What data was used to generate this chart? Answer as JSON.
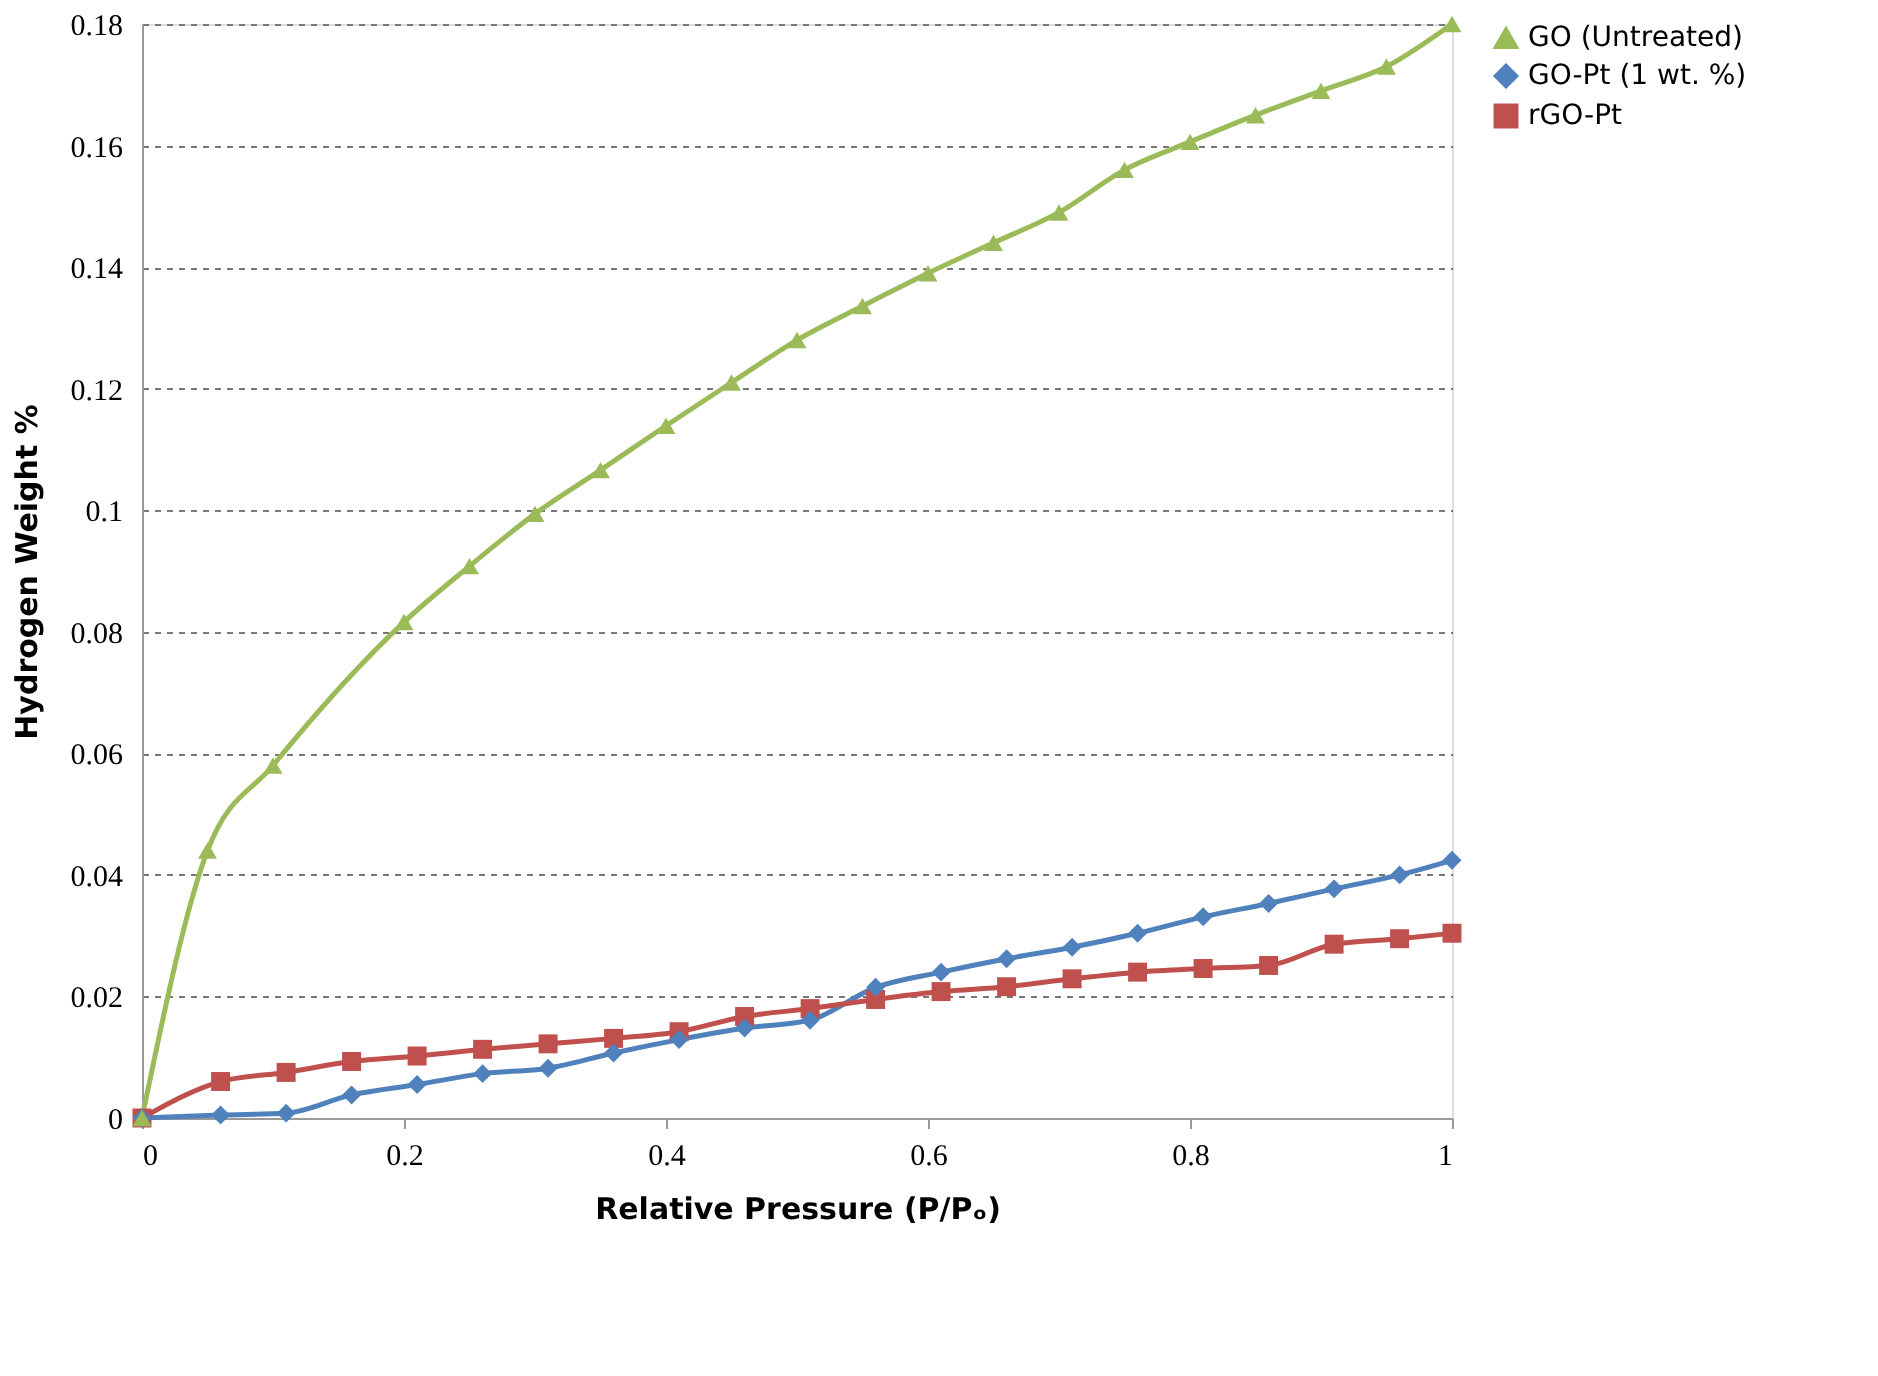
{
  "chart_data": {
    "type": "line",
    "xlabel": "Relative Pressure (P/Pₒ)",
    "ylabel": "Hydrogen Weight %",
    "xlim": [
      0,
      1
    ],
    "xticks": [
      0,
      0.2,
      0.4,
      0.6,
      0.8,
      1
    ],
    "ylim": [
      0,
      0.18
    ],
    "yticks": [
      0,
      0.02,
      0.04,
      0.06,
      0.08,
      0.1,
      0.12,
      0.14,
      0.16,
      0.18
    ],
    "grid": "y",
    "legend": "right",
    "line_style": "solid",
    "series": [
      {
        "name": "GO (Untreated)",
        "color": "#9bbb59",
        "marker": "triangle",
        "x": [
          0,
          0.05,
          0.1,
          0.2,
          0.25,
          0.3,
          0.35,
          0.4,
          0.45,
          0.5,
          0.55,
          0.6,
          0.65,
          0.7,
          0.75,
          0.8,
          0.85,
          0.9,
          0.95,
          1
        ],
        "values": [
          0,
          0.044,
          0.058,
          0.0816,
          0.0908,
          0.0994,
          0.1066,
          0.1139,
          0.121,
          0.128,
          0.1336,
          0.139,
          0.144,
          0.149,
          0.156,
          0.1606,
          0.165,
          0.169,
          0.173,
          0.18
        ]
      },
      {
        "name": "GO-Pt (1 wt. %)",
        "color": "#4f81bd",
        "marker": "diamond",
        "x": [
          0,
          0.06,
          0.11,
          0.16,
          0.21,
          0.26,
          0.31,
          0.36,
          0.41,
          0.46,
          0.51,
          0.56,
          0.61,
          0.66,
          0.71,
          0.76,
          0.81,
          0.86,
          0.91,
          0.96,
          1
        ],
        "values": [
          0,
          0.0005,
          0.0008,
          0.0038,
          0.0055,
          0.0073,
          0.0082,
          0.0107,
          0.0129,
          0.0148,
          0.0161,
          0.0215,
          0.024,
          0.0262,
          0.0281,
          0.0304,
          0.0331,
          0.0353,
          0.0377,
          0.04,
          0.0424
        ]
      },
      {
        "name": "rGO-Pt",
        "color": "#c0504d",
        "marker": "square",
        "x": [
          0,
          0.06,
          0.11,
          0.16,
          0.21,
          0.26,
          0.31,
          0.36,
          0.41,
          0.46,
          0.51,
          0.56,
          0.61,
          0.66,
          0.71,
          0.76,
          0.81,
          0.86,
          0.91,
          0.96,
          1
        ],
        "values": [
          0,
          0.006,
          0.0075,
          0.0093,
          0.0102,
          0.0113,
          0.0122,
          0.0131,
          0.0142,
          0.0167,
          0.018,
          0.0195,
          0.0208,
          0.0216,
          0.0229,
          0.024,
          0.0246,
          0.0251,
          0.0286,
          0.0295,
          0.0304
        ]
      }
    ]
  }
}
